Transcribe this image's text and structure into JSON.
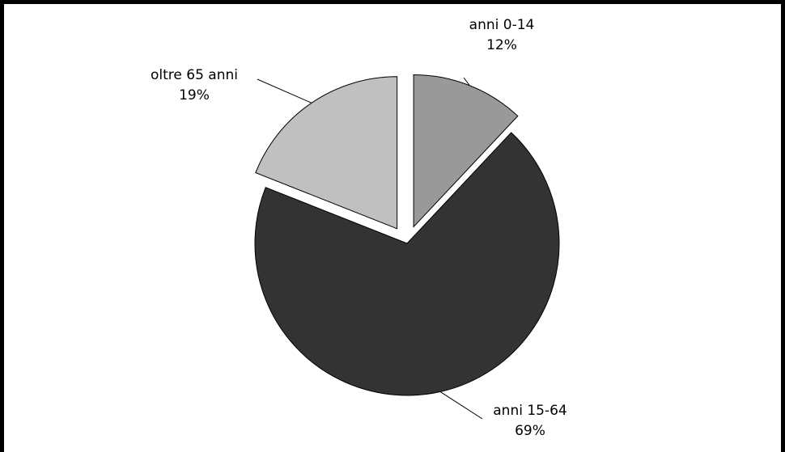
{
  "chart_data": {
    "type": "pie",
    "title": "",
    "exploded": true,
    "slices": [
      {
        "label": "anni 0-14",
        "value": 12,
        "value_label": "12%",
        "color": "#999999"
      },
      {
        "label": "anni 15-64",
        "value": 69,
        "value_label": "69%",
        "color": "#333333"
      },
      {
        "label": "oltre 65 anni",
        "value": 19,
        "value_label": "19%",
        "color": "#c0c0c0"
      }
    ]
  }
}
